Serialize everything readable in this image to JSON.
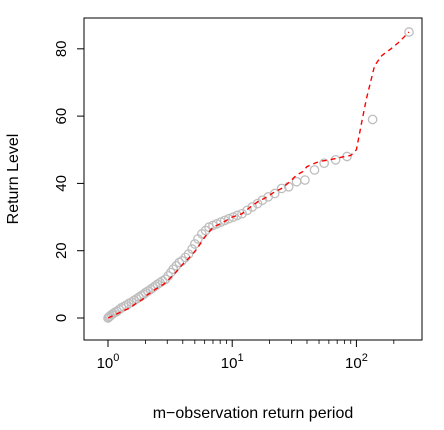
{
  "chart_data": {
    "type": "scatter",
    "title": "",
    "xlabel": "m−observation return period",
    "ylabel": "Return Level",
    "xscale": "log",
    "xlim": [
      1,
      270
    ],
    "ylim": [
      0,
      85
    ],
    "x_ticks": [
      {
        "value": 1,
        "base": "10",
        "exp": "0"
      },
      {
        "value": 10,
        "base": "10",
        "exp": "1"
      },
      {
        "value": 100,
        "base": "10",
        "exp": "2"
      }
    ],
    "y_ticks": [
      {
        "value": 0,
        "label": "0"
      },
      {
        "value": 20,
        "label": "20"
      },
      {
        "value": 40,
        "label": "40"
      },
      {
        "value": 60,
        "label": "60"
      },
      {
        "value": 80,
        "label": "80"
      }
    ],
    "grid": false,
    "legend": "none",
    "series": [
      {
        "kind": "points",
        "marker": "open-circle",
        "color": "#bebebe",
        "x": [
          1.0,
          1.02,
          1.04,
          1.07,
          1.1,
          1.14,
          1.18,
          1.23,
          1.28,
          1.34,
          1.4,
          1.47,
          1.55,
          1.62,
          1.7,
          1.78,
          1.85,
          1.93,
          2.0,
          2.1,
          2.2,
          2.3,
          2.4,
          2.5,
          2.62,
          2.75,
          2.9,
          3.05,
          3.2,
          3.35,
          3.55,
          3.75,
          3.95,
          4.2,
          4.45,
          4.75,
          5.0,
          5.3,
          5.7,
          6.1,
          6.5,
          7.0,
          7.5,
          8.1,
          8.7,
          9.4,
          10.2,
          11.0,
          12.0,
          13.2,
          14.5,
          16.0,
          17.5,
          19.5,
          22.0,
          25.0,
          28.5,
          33.0,
          38.5,
          46.0,
          55.0,
          68.0,
          84.0,
          135.0,
          265.0
        ],
        "y": [
          0,
          0.3,
          0.6,
          1,
          1.3,
          1.7,
          2,
          2.5,
          3,
          3.4,
          3.8,
          4.3,
          4.7,
          5.2,
          5.7,
          6.2,
          6.6,
          7,
          7.5,
          8,
          8.5,
          9,
          9.5,
          10,
          10.5,
          11,
          11.5,
          12.5,
          13.5,
          14.5,
          15.5,
          16.5,
          17,
          18,
          19,
          20.5,
          22,
          23.5,
          25,
          26,
          27,
          27.5,
          28,
          28.5,
          29,
          29.5,
          30,
          30.5,
          31,
          32,
          33,
          34,
          35,
          36,
          37,
          38.5,
          39,
          40.5,
          41,
          44,
          46,
          47,
          48,
          59,
          85
        ]
      },
      {
        "kind": "line",
        "style": "dashed",
        "color": "#ff0000",
        "x": [
          1.0,
          1.15,
          1.3,
          1.5,
          1.7,
          1.9,
          2.0,
          2.2,
          2.4,
          2.6,
          2.8,
          3.0,
          3.3,
          3.6,
          4.0,
          4.4,
          4.8,
          5.3,
          6.0,
          7.0,
          8.0,
          9.0,
          10.0,
          11.0,
          12.0,
          14.0,
          16.0,
          18.0,
          20.0,
          22.0,
          25.0,
          28.0,
          30.0,
          33.0,
          37.0,
          40.0,
          45.0,
          50.0,
          60.0,
          70.0,
          80.0,
          90.0,
          100.0,
          110.0,
          120.0,
          140.0,
          160.0,
          190.0,
          220.0,
          265.0
        ],
        "y": [
          0,
          1,
          2,
          3,
          4.5,
          5.5,
          6.5,
          7.5,
          8.5,
          9.3,
          10,
          11,
          12.5,
          14,
          16,
          17.5,
          19,
          21,
          24,
          27,
          28,
          29,
          30,
          30.5,
          31,
          33,
          34.5,
          35.5,
          36.5,
          37.5,
          38.5,
          40,
          41,
          42.5,
          43.5,
          45,
          45.8,
          46.5,
          47,
          47.5,
          48,
          48.3,
          50,
          58,
          65,
          75,
          78,
          80,
          82,
          85
        ]
      }
    ]
  }
}
